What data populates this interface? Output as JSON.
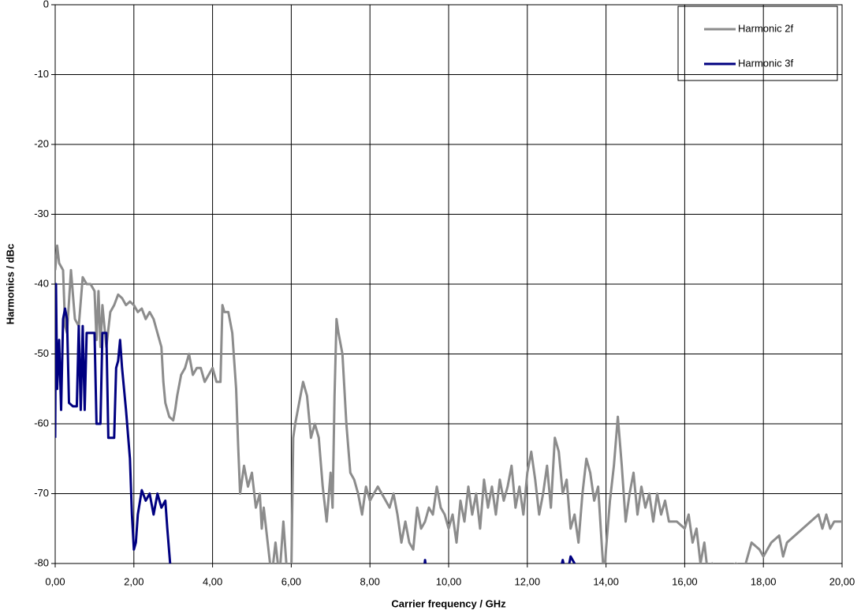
{
  "chart_data": {
    "type": "line",
    "xlabel": "Carrier frequency / GHz",
    "ylabel": "Harmonics / dBc",
    "xlim": [
      0,
      20
    ],
    "ylim": [
      -80,
      0
    ],
    "xticks": [
      {
        "value": 0,
        "label": "0,00"
      },
      {
        "value": 2,
        "label": "2,00"
      },
      {
        "value": 4,
        "label": "4,00"
      },
      {
        "value": 6,
        "label": "6,00"
      },
      {
        "value": 8,
        "label": "8,00"
      },
      {
        "value": 10,
        "label": "10,00"
      },
      {
        "value": 12,
        "label": "12,00"
      },
      {
        "value": 14,
        "label": "14,00"
      },
      {
        "value": 16,
        "label": "16,00"
      },
      {
        "value": 18,
        "label": "18,00"
      },
      {
        "value": 20,
        "label": "20,00"
      }
    ],
    "yticks": [
      0,
      -10,
      -20,
      -30,
      -40,
      -50,
      -60,
      -70,
      -80
    ],
    "grid": true,
    "legend": "top-right",
    "series": [
      {
        "name": "Harmonic 2f",
        "color": "#8c8c8c",
        "x": [
          0.0,
          0.05,
          0.1,
          0.2,
          0.25,
          0.3,
          0.4,
          0.5,
          0.6,
          0.7,
          0.8,
          0.9,
          1.0,
          1.05,
          1.1,
          1.15,
          1.2,
          1.3,
          1.4,
          1.5,
          1.6,
          1.7,
          1.8,
          1.9,
          2.0,
          2.1,
          2.2,
          2.3,
          2.4,
          2.5,
          2.6,
          2.7,
          2.75,
          2.8,
          2.9,
          3.0,
          3.05,
          3.1,
          3.2,
          3.3,
          3.4,
          3.5,
          3.6,
          3.7,
          3.8,
          3.9,
          4.0,
          4.1,
          4.2,
          4.25,
          4.3,
          4.4,
          4.5,
          4.6,
          4.65,
          4.7,
          4.8,
          4.9,
          5.0,
          5.1,
          5.2,
          5.25,
          5.3,
          5.4,
          5.5,
          5.6,
          5.7,
          5.8,
          5.9,
          6.0,
          6.05,
          6.1,
          6.2,
          6.3,
          6.4,
          6.5,
          6.6,
          6.7,
          6.8,
          6.9,
          7.0,
          7.05,
          7.1,
          7.15,
          7.2,
          7.3,
          7.4,
          7.5,
          7.6,
          7.7,
          7.8,
          7.9,
          8.0,
          8.1,
          8.2,
          8.4,
          8.5,
          8.6,
          8.7,
          8.8,
          8.9,
          9.0,
          9.1,
          9.2,
          9.3,
          9.4,
          9.5,
          9.6,
          9.7,
          9.8,
          9.9,
          10.0,
          10.1,
          10.2,
          10.3,
          10.4,
          10.5,
          10.6,
          10.7,
          10.8,
          10.9,
          11.0,
          11.1,
          11.2,
          11.3,
          11.4,
          11.5,
          11.6,
          11.7,
          11.8,
          11.9,
          12.0,
          12.1,
          12.2,
          12.3,
          12.4,
          12.5,
          12.6,
          12.7,
          12.8,
          12.9,
          13.0,
          13.1,
          13.2,
          13.3,
          13.4,
          13.5,
          13.6,
          13.7,
          13.8,
          13.9,
          13.95,
          14.0,
          14.1,
          14.2,
          14.3,
          14.4,
          14.5,
          14.6,
          14.7,
          14.8,
          14.9,
          15.0,
          15.1,
          15.2,
          15.3,
          15.4,
          15.5,
          15.6,
          15.8,
          16.0,
          16.1,
          16.2,
          16.3,
          16.4,
          16.5,
          16.6,
          16.7,
          16.8,
          17.0,
          17.3,
          17.5,
          17.7,
          17.9,
          18.0,
          18.2,
          18.4,
          18.5,
          18.6,
          18.8,
          19.0,
          19.2,
          19.4,
          19.5,
          19.6,
          19.7,
          19.8,
          20.0
        ],
        "values": [
          -38,
          -34.5,
          -37,
          -38,
          -46,
          -47,
          -38,
          -45,
          -46,
          -39,
          -40,
          -40,
          -41,
          -48,
          -41,
          -49,
          -43,
          -49,
          -44,
          -43,
          -41.5,
          -42,
          -43,
          -42.5,
          -43,
          -44,
          -43.5,
          -45,
          -44,
          -45,
          -47,
          -49,
          -54,
          -57,
          -59,
          -59.5,
          -58,
          -56,
          -53,
          -52,
          -50,
          -53,
          -52,
          -52,
          -54,
          -53,
          -52,
          -54,
          -54,
          -43,
          -44,
          -44,
          -47,
          -55,
          -63,
          -70,
          -66,
          -69,
          -67,
          -72,
          -70,
          -75,
          -72,
          -77,
          -82,
          -77,
          -82,
          -74,
          -82,
          -82,
          -62,
          -60,
          -57,
          -54,
          -56,
          -62,
          -60,
          -62,
          -69,
          -74,
          -67,
          -72,
          -56,
          -45,
          -47,
          -50,
          -60,
          -67,
          -68,
          -70,
          -73,
          -69,
          -71,
          -70,
          -69,
          -71,
          -72,
          -70,
          -73,
          -77,
          -74,
          -77,
          -78,
          -72,
          -75,
          -74,
          -72,
          -73,
          -69,
          -72,
          -73,
          -75,
          -73,
          -77,
          -71,
          -74,
          -69,
          -73,
          -70,
          -75,
          -68,
          -72,
          -69,
          -73,
          -68,
          -71,
          -69,
          -66,
          -72,
          -69,
          -73,
          -67,
          -64,
          -68,
          -73,
          -70,
          -66,
          -72,
          -62,
          -64,
          -70,
          -68,
          -75,
          -73,
          -77,
          -70,
          -65,
          -67,
          -71,
          -69,
          -78,
          -82,
          -78,
          -71,
          -66,
          -59,
          -66,
          -74,
          -70,
          -67,
          -73,
          -69,
          -72,
          -70,
          -74,
          -70,
          -73,
          -71,
          -74,
          -74,
          -75,
          -73,
          -77,
          -75,
          -80,
          -77,
          -82,
          -80,
          -82,
          -81,
          -80,
          -81,
          -77,
          -78,
          -79,
          -77,
          -76,
          -79,
          -77,
          -76,
          -75,
          -74,
          -73,
          -75,
          -73,
          -75,
          -74,
          -74
        ]
      },
      {
        "name": "Harmonic 3f",
        "color": "#000080",
        "x": [
          0.0,
          0.02,
          0.05,
          0.1,
          0.15,
          0.2,
          0.25,
          0.3,
          0.35,
          0.45,
          0.55,
          0.6,
          0.65,
          0.7,
          0.75,
          0.8,
          0.9,
          1.0,
          1.05,
          1.15,
          1.2,
          1.3,
          1.35,
          1.5,
          1.55,
          1.6,
          1.65,
          1.7,
          1.8,
          1.9,
          1.95,
          2.0,
          2.05,
          2.1,
          2.2,
          2.3,
          2.4,
          2.5,
          2.6,
          2.7,
          2.8,
          2.85,
          2.95,
          6.0,
          9.35,
          9.4,
          9.45,
          11.0,
          12.8,
          12.9,
          13.0,
          13.1,
          13.2,
          13.3
        ],
        "values": [
          -62,
          -40,
          -55,
          -48,
          -58,
          -45,
          -43.5,
          -45,
          -57,
          -57.5,
          -57.5,
          -46,
          -58,
          -46,
          -58,
          -47,
          -47,
          -47,
          -60,
          -60,
          -47,
          -47,
          -62,
          -62,
          -52,
          -51,
          -48,
          -52,
          -58,
          -65,
          -73,
          -78,
          -77,
          -73,
          -69.5,
          -71,
          -70,
          -73,
          -70,
          -72,
          -71,
          -75,
          -82,
          null,
          -82,
          -79.5,
          -82,
          null,
          -82,
          -79.5,
          -82,
          -79,
          -80,
          -82
        ]
      }
    ]
  }
}
